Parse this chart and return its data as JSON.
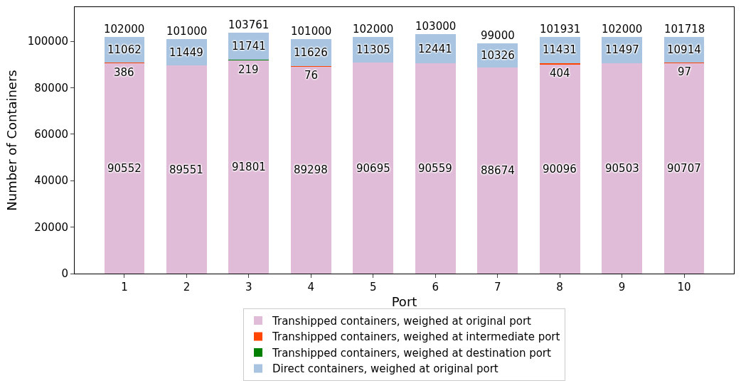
{
  "chart_data": {
    "type": "bar",
    "stacked": true,
    "xlabel": "Port",
    "ylabel": "Number of Containers",
    "categories": [
      "1",
      "2",
      "3",
      "4",
      "5",
      "6",
      "7",
      "8",
      "9",
      "10"
    ],
    "series": [
      {
        "name": "Transhipped containers, weighed at original port",
        "color": "#e0bcd8",
        "values": [
          90552,
          89551,
          91801,
          89298,
          90695,
          90559,
          88674,
          90096,
          90503,
          90707
        ],
        "value_labels": [
          "90552",
          "89551",
          "91801",
          "89298",
          "90695",
          "90559",
          "88674",
          "90096",
          "90503",
          "90707"
        ]
      },
      {
        "name": "Transhipped containers, weighed at intermediate port",
        "color": "#ff4500",
        "values": [
          386,
          0,
          0,
          76,
          0,
          0,
          0,
          404,
          0,
          97
        ],
        "value_labels": [
          "386",
          null,
          null,
          "76",
          null,
          null,
          null,
          "404",
          null,
          "97"
        ]
      },
      {
        "name": "Transhipped containers, weighed at destination port",
        "color": "#008000",
        "values": [
          0,
          0,
          219,
          0,
          0,
          0,
          0,
          0,
          0,
          0
        ],
        "value_labels": [
          null,
          null,
          "219",
          null,
          null,
          null,
          null,
          null,
          null,
          null
        ]
      },
      {
        "name": "Direct containers, weighed at original port",
        "color": "#a8c4e0",
        "values": [
          11062,
          11449,
          11741,
          11626,
          11305,
          12441,
          10326,
          11431,
          11497,
          10914
        ],
        "value_labels": [
          "11062",
          "11449",
          "11741",
          "11626",
          "11305",
          "12441",
          "10326",
          "11431",
          "11497",
          "10914"
        ]
      }
    ],
    "totals": [
      "102000",
      "101000",
      "103761",
      "101000",
      "102000",
      "103000",
      "99000",
      "101931",
      "102000",
      "101718"
    ],
    "ylim": [
      0,
      114700
    ],
    "yticks": [
      0,
      20000,
      40000,
      60000,
      80000,
      100000
    ],
    "grid": false,
    "legend": "bottom"
  }
}
